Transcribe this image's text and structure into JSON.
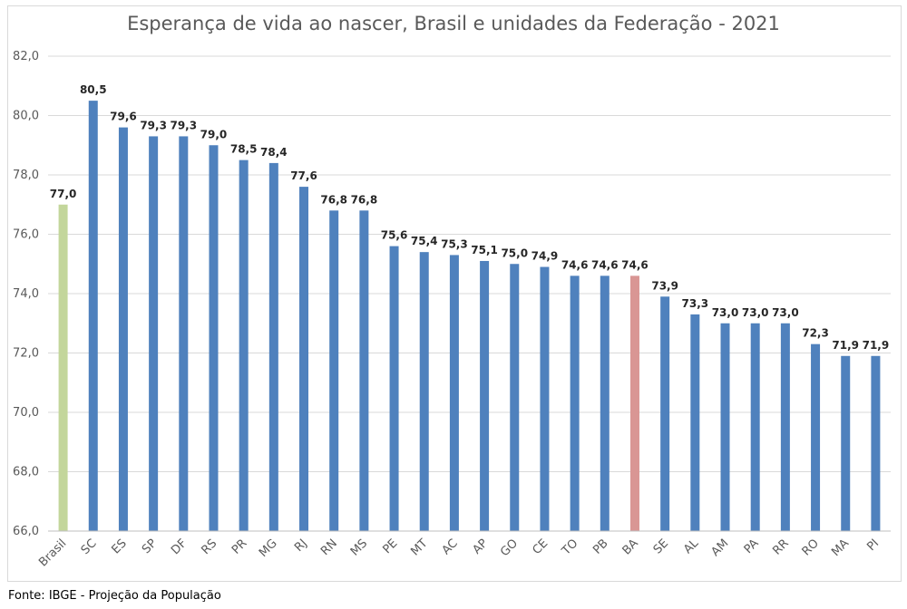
{
  "chart_data": {
    "type": "bar",
    "title": "Esperança de vida ao nascer, Brasil e unidades da Federação - 2021",
    "xlabel": "",
    "ylabel": "",
    "ylim": [
      66,
      82
    ],
    "yticks": [
      "66,0",
      "68,0",
      "70,0",
      "72,0",
      "74,0",
      "76,0",
      "78,0",
      "80,0",
      "82,0"
    ],
    "grid": true,
    "categories": [
      "Brasil",
      "SC",
      "ES",
      "SP",
      "DF",
      "RS",
      "PR",
      "MG",
      "RJ",
      "RN",
      "MS",
      "PE",
      "MT",
      "AC",
      "AP",
      "GO",
      "CE",
      "TO",
      "PB",
      "BA",
      "SE",
      "AL",
      "AM",
      "PA",
      "RR",
      "RO",
      "MA",
      "PI"
    ],
    "values": [
      77.0,
      80.5,
      79.6,
      79.3,
      79.3,
      79.0,
      78.5,
      78.4,
      77.6,
      76.8,
      76.8,
      75.6,
      75.4,
      75.3,
      75.1,
      75.0,
      74.9,
      74.6,
      74.6,
      74.6,
      73.9,
      73.3,
      73.0,
      73.0,
      73.0,
      72.3,
      71.9,
      71.9
    ],
    "value_labels": [
      "77,0",
      "80,5",
      "79,6",
      "79,3",
      "79,3",
      "79,0",
      "78,5",
      "78,4",
      "77,6",
      "76,8",
      "76,8",
      "75,6",
      "75,4",
      "75,3",
      "75,1",
      "75,0",
      "74,9",
      "74,6",
      "74,6",
      "74,6",
      "73,9",
      "73,3",
      "73,0",
      "73,0",
      "73,0",
      "72,3",
      "71,9",
      "71,9"
    ],
    "colors": {
      "default": "#4f81bd",
      "Brasil": "#c3d69b",
      "BA": "#d99694",
      "grid": "#d9d9d9",
      "axis_text": "#595959"
    }
  },
  "source": "Fonte: IBGE - Projeção da População"
}
